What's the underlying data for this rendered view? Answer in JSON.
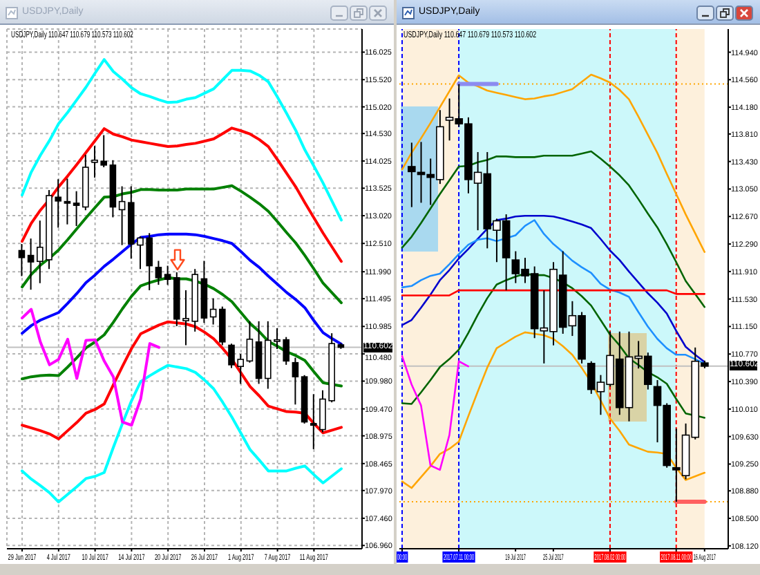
{
  "chart_data": [
    {
      "type": "candlestick",
      "title": "USDJPY,Daily",
      "subtitle": "USDJPY,Daily 110.647 110.679 110.573 110.602",
      "categories": [
        "29 Jun 2017",
        null,
        null,
        null,
        "4 Jul 2017",
        null,
        null,
        null,
        "10 Jul 2017",
        null,
        null,
        null,
        "14 Jul 2017",
        null,
        null,
        null,
        "20 Jul 2017",
        null,
        null,
        null,
        "26 Jul 2017",
        null,
        null,
        null,
        "1 Aug 2017",
        null,
        null,
        null,
        "7 Aug 2017",
        null,
        null,
        null,
        "11 Aug 2017",
        null,
        null,
        null
      ],
      "ohlc": [
        [
          112.38,
          112.5,
          111.91,
          112.25
        ],
        [
          112.29,
          112.6,
          111.66,
          112.17
        ],
        [
          112.18,
          112.93,
          111.78,
          112.44
        ],
        [
          112.21,
          113.49,
          112.04,
          113.39
        ],
        [
          113.36,
          113.69,
          112.8,
          113.29
        ],
        [
          113.28,
          113.7,
          112.86,
          113.25
        ],
        [
          113.25,
          113.47,
          112.83,
          113.21
        ],
        [
          113.18,
          114.14,
          113.12,
          113.91
        ],
        [
          114.0,
          114.3,
          113.72,
          114.04
        ],
        [
          114.02,
          114.5,
          113.91,
          113.95
        ],
        [
          113.95,
          114.04,
          112.99,
          113.18
        ],
        [
          113.13,
          113.56,
          112.48,
          113.28
        ],
        [
          113.26,
          113.56,
          112.23,
          112.5
        ],
        [
          112.48,
          112.64,
          112.04,
          112.61
        ],
        [
          112.61,
          112.7,
          111.65,
          112.1
        ],
        [
          112.07,
          112.19,
          111.75,
          111.88
        ],
        [
          111.94,
          112.1,
          111.75,
          111.85
        ],
        [
          111.88,
          111.98,
          110.99,
          111.12
        ],
        [
          111.09,
          111.65,
          110.64,
          111.13
        ],
        [
          111.08,
          112.04,
          110.89,
          111.94
        ],
        [
          111.86,
          112.19,
          111.05,
          111.14
        ],
        [
          111.16,
          111.5,
          111.02,
          111.3
        ],
        [
          111.3,
          111.35,
          110.64,
          110.7
        ],
        [
          110.64,
          110.67,
          110.22,
          110.28
        ],
        [
          110.25,
          110.48,
          109.93,
          110.38
        ],
        [
          110.35,
          111.08,
          110.32,
          110.75
        ],
        [
          110.7,
          111.08,
          109.93,
          110.03
        ],
        [
          110.03,
          111.08,
          109.84,
          110.73
        ],
        [
          110.71,
          110.95,
          110.57,
          110.74
        ],
        [
          110.74,
          110.79,
          110.28,
          110.35
        ],
        [
          110.32,
          110.41,
          109.55,
          110.06
        ],
        [
          110.06,
          110.09,
          109.2,
          109.23
        ],
        [
          109.2,
          109.74,
          108.73,
          109.17
        ],
        [
          109.09,
          109.81,
          109.04,
          109.65
        ],
        [
          109.62,
          110.86,
          109.59,
          110.67
        ],
        [
          110.647,
          110.679,
          110.573,
          110.602
        ]
      ],
      "series": [
        {
          "type": "line",
          "color": "#00ffff",
          "values": [
            113.4,
            113.82,
            114.13,
            114.4,
            114.71,
            114.92,
            115.15,
            115.38,
            115.64,
            115.89,
            115.67,
            115.53,
            115.37,
            115.26,
            115.21,
            115.15,
            115.1,
            115.11,
            115.16,
            115.19,
            115.27,
            115.35,
            115.52,
            115.69,
            115.69,
            115.68,
            115.6,
            115.48,
            115.2,
            114.9,
            114.59,
            114.23,
            113.93,
            113.62,
            113.28,
            112.94
          ]
        },
        {
          "type": "line",
          "color": "#ff0000",
          "values": [
            112.55,
            112.88,
            113.12,
            113.32,
            113.55,
            113.75,
            113.96,
            114.18,
            114.4,
            114.62,
            114.52,
            114.47,
            114.41,
            114.38,
            114.35,
            114.32,
            114.29,
            114.3,
            114.33,
            114.35,
            114.39,
            114.43,
            114.53,
            114.63,
            114.58,
            114.52,
            114.42,
            114.29,
            114.05,
            113.8,
            113.55,
            113.26,
            112.98,
            112.7,
            112.44,
            112.18
          ]
        },
        {
          "type": "line",
          "color": "#008000",
          "values": [
            111.71,
            111.94,
            112.11,
            112.24,
            112.39,
            112.58,
            112.78,
            112.98,
            113.17,
            113.36,
            113.37,
            113.42,
            113.45,
            113.5,
            113.5,
            113.49,
            113.49,
            113.49,
            113.51,
            113.51,
            113.51,
            113.51,
            113.54,
            113.57,
            113.47,
            113.36,
            113.24,
            113.1,
            112.91,
            112.71,
            112.52,
            112.29,
            112.04,
            111.78,
            111.6,
            111.42
          ]
        },
        {
          "type": "line",
          "color": "#0000ff",
          "values": [
            110.86,
            111.0,
            111.1,
            111.17,
            111.24,
            111.41,
            111.59,
            111.79,
            111.93,
            112.09,
            112.22,
            112.36,
            112.5,
            112.62,
            112.64,
            112.67,
            112.68,
            112.68,
            112.68,
            112.67,
            112.64,
            112.6,
            112.56,
            112.51,
            112.36,
            112.2,
            112.07,
            111.91,
            111.76,
            111.61,
            111.48,
            111.33,
            111.09,
            110.87,
            110.76,
            110.66
          ]
        },
        {
          "type": "line",
          "color": "#008000",
          "values": [
            110.02,
            110.06,
            110.08,
            110.09,
            110.08,
            110.24,
            110.41,
            110.59,
            110.7,
            110.83,
            111.06,
            111.31,
            111.54,
            111.73,
            111.79,
            111.84,
            111.88,
            111.86,
            111.86,
            111.82,
            111.76,
            111.68,
            111.57,
            111.44,
            111.24,
            111.04,
            110.89,
            110.71,
            110.62,
            110.52,
            110.45,
            110.36,
            110.15,
            109.95,
            109.92,
            109.89
          ]
        },
        {
          "type": "line",
          "color": "#ff0000",
          "values": [
            109.17,
            109.12,
            109.07,
            109.01,
            108.92,
            109.07,
            109.22,
            109.39,
            109.46,
            109.56,
            109.91,
            110.25,
            110.58,
            110.85,
            110.93,
            111.01,
            111.07,
            111.05,
            111.03,
            110.98,
            110.88,
            110.76,
            110.58,
            110.38,
            110.13,
            109.88,
            109.71,
            109.52,
            109.47,
            109.42,
            109.41,
            109.39,
            109.2,
            109.03,
            109.08,
            109.13
          ]
        },
        {
          "type": "line",
          "color": "#00ffff",
          "values": [
            108.33,
            108.18,
            108.06,
            107.93,
            107.76,
            107.9,
            108.04,
            108.19,
            108.23,
            108.3,
            108.76,
            109.2,
            109.62,
            109.97,
            110.08,
            110.18,
            110.27,
            110.24,
            110.21,
            110.14,
            110.0,
            109.84,
            109.59,
            109.32,
            109.02,
            108.72,
            108.53,
            108.33,
            108.33,
            108.33,
            108.38,
            108.42,
            108.26,
            108.11,
            108.24,
            108.37
          ]
        },
        {
          "type": "line",
          "color": "#ff00ff",
          "values": [
            111.14,
            111.3,
            110.7,
            110.28,
            110.38,
            110.75,
            110.03,
            110.73,
            110.74,
            110.35,
            110.06,
            109.23,
            109.17,
            109.65,
            110.67,
            110.6,
            null,
            null,
            null,
            null,
            null,
            null,
            null,
            null,
            null,
            null,
            null,
            null,
            null,
            null,
            null,
            null,
            null,
            null,
            null,
            null
          ]
        }
      ],
      "ylim": [
        106.9,
        116.45
      ],
      "yticks": [
        116.025,
        {
          "value": 115.52,
          "label": "115.520"
        },
        {
          "value": 115.02,
          "label": "115.020"
        },
        {
          "value": 114.53,
          "label": "114.530"
        },
        114.025,
        113.525,
        {
          "value": 113.02,
          "label": "113.020"
        },
        {
          "value": 112.51,
          "label": "112.510"
        },
        {
          "value": 111.99,
          "label": "111.990"
        },
        111.495,
        110.985,
        {
          "value": 110.48,
          "label": "110.480"
        },
        {
          "value": 109.98,
          "label": "109.980"
        },
        {
          "value": 109.47,
          "label": "109.470"
        },
        108.975,
        108.465,
        {
          "value": 107.97,
          "label": "107.970"
        },
        {
          "value": 107.46,
          "label": "107.460"
        },
        {
          "value": 106.96,
          "label": "106.960"
        }
      ],
      "grid": true,
      "ref_lines": [
        {
          "axis": "y",
          "value": 110.602,
          "label": "110.602",
          "color": "#c0c0c0"
        }
      ]
    },
    {
      "type": "candlestick",
      "title": "USDJPY,Daily",
      "subtitle": "USDJPY,Daily 110.647 110.679 110.573 110.602",
      "categories": [
        "00:00",
        null,
        null,
        null,
        null,
        null,
        "2017.07.11 00:00",
        null,
        null,
        null,
        null,
        null,
        "19 Jul 2017",
        null,
        null,
        null,
        "25 Jul 2017",
        null,
        null,
        null,
        null,
        null,
        "2017.08.02 00:00",
        null,
        null,
        null,
        null,
        null,
        null,
        "2017.08.11 00:00",
        null,
        null,
        "16 Aug 2017"
      ],
      "ohlc": [
        null,
        [
          113.36,
          113.69,
          112.8,
          113.29
        ],
        [
          113.28,
          113.7,
          112.86,
          113.25
        ],
        [
          113.25,
          113.47,
          112.83,
          113.21
        ],
        [
          113.18,
          114.14,
          113.12,
          113.91
        ],
        [
          114.0,
          114.3,
          113.72,
          114.04
        ],
        [
          114.02,
          114.5,
          113.91,
          113.95
        ],
        [
          113.95,
          114.04,
          112.99,
          113.18
        ],
        [
          113.13,
          113.56,
          112.48,
          113.28
        ],
        [
          113.26,
          113.56,
          112.23,
          112.5
        ],
        [
          112.48,
          112.64,
          112.04,
          112.61
        ],
        [
          112.61,
          112.7,
          111.65,
          112.1
        ],
        [
          112.07,
          112.19,
          111.75,
          111.88
        ],
        [
          111.94,
          112.1,
          111.75,
          111.85
        ],
        [
          111.88,
          111.98,
          110.99,
          111.12
        ],
        [
          111.09,
          111.65,
          110.64,
          111.13
        ],
        [
          111.08,
          112.04,
          110.89,
          111.94
        ],
        [
          111.86,
          112.19,
          111.05,
          111.14
        ],
        [
          111.16,
          111.5,
          111.02,
          111.3
        ],
        [
          111.3,
          111.35,
          110.64,
          110.7
        ],
        [
          110.64,
          110.67,
          110.22,
          110.28
        ],
        [
          110.25,
          110.48,
          109.93,
          110.38
        ],
        [
          110.35,
          111.08,
          110.32,
          110.75
        ],
        [
          110.7,
          111.08,
          109.93,
          110.03
        ],
        [
          110.03,
          111.08,
          109.84,
          110.73
        ],
        [
          110.71,
          110.95,
          110.57,
          110.74
        ],
        [
          110.74,
          110.79,
          110.28,
          110.35
        ],
        [
          110.32,
          110.41,
          109.55,
          110.06
        ],
        [
          110.06,
          110.09,
          109.2,
          109.23
        ],
        [
          109.2,
          109.74,
          108.73,
          109.17
        ],
        [
          109.09,
          109.81,
          109.04,
          109.65
        ],
        [
          109.62,
          110.86,
          109.59,
          110.67
        ],
        [
          110.647,
          110.679,
          110.573,
          110.602
        ]
      ],
      "series": [
        {
          "type": "line",
          "color": "#ffa500",
          "values": [
            113.32,
            113.55,
            113.75,
            113.96,
            114.18,
            114.4,
            114.62,
            114.52,
            114.47,
            114.41,
            114.38,
            114.35,
            114.32,
            114.29,
            114.3,
            114.33,
            114.35,
            114.39,
            114.43,
            114.53,
            114.63,
            114.58,
            114.52,
            114.42,
            114.29,
            114.05,
            113.8,
            113.55,
            113.26,
            112.98,
            112.7,
            112.44,
            112.18
          ]
        },
        {
          "type": "line",
          "color": "#ffa500",
          "values": [
            109.01,
            108.92,
            109.07,
            109.22,
            109.39,
            109.46,
            109.56,
            109.91,
            110.25,
            110.58,
            110.85,
            110.93,
            111.01,
            111.07,
            111.05,
            111.03,
            110.98,
            110.88,
            110.76,
            110.58,
            110.38,
            110.13,
            109.88,
            109.71,
            109.52,
            109.47,
            109.42,
            109.41,
            109.39,
            109.2,
            109.03,
            109.08,
            109.13
          ]
        },
        {
          "type": "line",
          "color": "#006400",
          "values": [
            112.24,
            112.39,
            112.58,
            112.78,
            112.98,
            113.17,
            113.36,
            113.37,
            113.42,
            113.45,
            113.5,
            113.5,
            113.49,
            113.49,
            113.49,
            113.51,
            113.51,
            113.51,
            113.51,
            113.54,
            113.57,
            113.47,
            113.36,
            113.24,
            113.1,
            112.91,
            112.71,
            112.52,
            112.29,
            112.04,
            111.78,
            111.6,
            111.42
          ]
        },
        {
          "type": "line",
          "color": "#006400",
          "values": [
            110.09,
            110.08,
            110.24,
            110.41,
            110.59,
            110.7,
            110.83,
            111.06,
            111.31,
            111.54,
            111.73,
            111.79,
            111.84,
            111.88,
            111.86,
            111.86,
            111.82,
            111.76,
            111.68,
            111.57,
            111.44,
            111.24,
            111.04,
            110.89,
            110.71,
            110.62,
            110.52,
            110.45,
            110.36,
            110.15,
            109.95,
            109.92,
            109.89
          ]
        },
        {
          "type": "line",
          "color": "#0000cd",
          "values": [
            111.17,
            111.24,
            111.41,
            111.59,
            111.79,
            111.93,
            112.09,
            112.22,
            112.36,
            112.5,
            112.62,
            112.64,
            112.67,
            112.68,
            112.68,
            112.68,
            112.67,
            112.64,
            112.6,
            112.56,
            112.51,
            112.36,
            112.2,
            112.07,
            111.91,
            111.76,
            111.61,
            111.48,
            111.33,
            111.09,
            110.87,
            110.76,
            110.66
          ]
        },
        {
          "type": "line",
          "color": "#1e90ff",
          "values": [
            111.69,
            111.71,
            111.79,
            111.85,
            111.88,
            112.01,
            112.15,
            112.28,
            112.35,
            112.37,
            112.33,
            112.37,
            112.41,
            112.54,
            112.62,
            112.43,
            112.29,
            112.18,
            112.06,
            111.97,
            111.89,
            111.74,
            111.66,
            111.62,
            111.56,
            111.35,
            111.15,
            110.98,
            110.85,
            110.76,
            110.76,
            110.7,
            110.64
          ]
        },
        {
          "type": "line",
          "color": "#ff0000",
          "values": [
            111.58,
            111.58,
            111.58,
            111.58,
            111.58,
            111.58,
            111.65,
            111.65,
            111.65,
            111.65,
            111.65,
            111.65,
            111.65,
            111.65,
            111.65,
            111.65,
            111.65,
            111.65,
            111.65,
            111.65,
            111.65,
            111.65,
            111.65,
            111.65,
            111.65,
            111.65,
            111.65,
            111.65,
            111.65,
            111.6,
            111.6,
            111.6,
            111.6
          ]
        },
        {
          "type": "line",
          "color": "#ff00ff",
          "values": [
            110.74,
            110.35,
            110.06,
            109.23,
            109.17,
            109.65,
            110.67,
            110.6,
            null,
            null,
            null,
            null,
            null,
            null,
            null,
            null,
            null,
            null,
            null,
            null,
            null,
            null,
            null,
            null,
            null,
            null,
            null,
            null,
            null,
            null,
            null,
            null,
            null
          ]
        },
        {
          "type": "line",
          "color": "#8c8cf0",
          "values": [
            null,
            null,
            null,
            null,
            null,
            null,
            114.5,
            114.5,
            114.5,
            114.5,
            114.5,
            null,
            null,
            null,
            null,
            null,
            null,
            null,
            null,
            null,
            null,
            null,
            null,
            null,
            null,
            null,
            null,
            null,
            null,
            null,
            null,
            null,
            null
          ]
        },
        {
          "type": "line",
          "color": "#ff6060",
          "values": [
            null,
            null,
            null,
            null,
            null,
            null,
            null,
            null,
            null,
            null,
            null,
            null,
            null,
            null,
            null,
            null,
            null,
            null,
            null,
            null,
            null,
            null,
            null,
            null,
            null,
            null,
            null,
            null,
            null,
            108.73,
            108.73,
            108.73,
            108.73
          ]
        }
      ],
      "ylim": [
        108.08,
        115.26
      ],
      "yticks": [
        {
          "value": 114.94,
          "label": "114.940"
        },
        {
          "value": 114.56,
          "label": "114.560"
        },
        {
          "value": 114.18,
          "label": "114.180"
        },
        {
          "value": 113.81,
          "label": "113.810"
        },
        {
          "value": 113.43,
          "label": "113.430"
        },
        {
          "value": 113.05,
          "label": "113.050"
        },
        {
          "value": 112.67,
          "label": "112.670"
        },
        {
          "value": 112.29,
          "label": "112.290"
        },
        {
          "value": 111.91,
          "label": "111.910"
        },
        {
          "value": 111.53,
          "label": "111.530"
        },
        {
          "value": 111.15,
          "label": "111.150"
        },
        {
          "value": 110.77,
          "label": "110.770"
        },
        {
          "value": 110.39,
          "label": "110.390"
        },
        {
          "value": 110.01,
          "label": "110.010"
        },
        {
          "value": 109.63,
          "label": "109.630"
        },
        {
          "value": 109.25,
          "label": "109.250"
        },
        {
          "value": 108.88,
          "label": "108.880"
        },
        {
          "value": 108.5,
          "label": "108.500"
        },
        {
          "value": 108.12,
          "label": "108.120"
        }
      ],
      "grid": false,
      "bands": [
        {
          "axis": "x",
          "from": "00:00",
          "to": "2017.07.11 00:00",
          "color": "#fdf0dc"
        },
        {
          "axis": "x",
          "from": "2017.07.11 00:00",
          "to": "2017.08.11 00:00",
          "color": "#ccf8fa"
        },
        {
          "axis": "x",
          "from": "2017.08.11 00:00",
          "to": "16 Aug 2017",
          "color": "#fdf0dc"
        }
      ],
      "ref_lines": [
        {
          "axis": "x",
          "value": "00:00",
          "color": "#0000ff",
          "line_style": "dashed"
        },
        {
          "axis": "x",
          "value": "2017.07.11 00:00",
          "color": "#0000ff",
          "line_style": "dashed"
        },
        {
          "axis": "x",
          "value": "2017.08.02 00:00",
          "color": "#ff0000",
          "line_style": "dashed"
        },
        {
          "axis": "x",
          "value": "2017.08.11 00:00",
          "color": "#ff0000",
          "line_style": "dashed"
        },
        {
          "axis": "y",
          "value": 114.5,
          "color": "#ffa500",
          "line_style": "dotted"
        },
        {
          "axis": "y",
          "value": 108.73,
          "color": "#ffa500",
          "line_style": "dotted"
        },
        {
          "axis": "y",
          "value": 110.602,
          "label": "110.602",
          "color": "#c0c0c0"
        }
      ]
    }
  ]
}
